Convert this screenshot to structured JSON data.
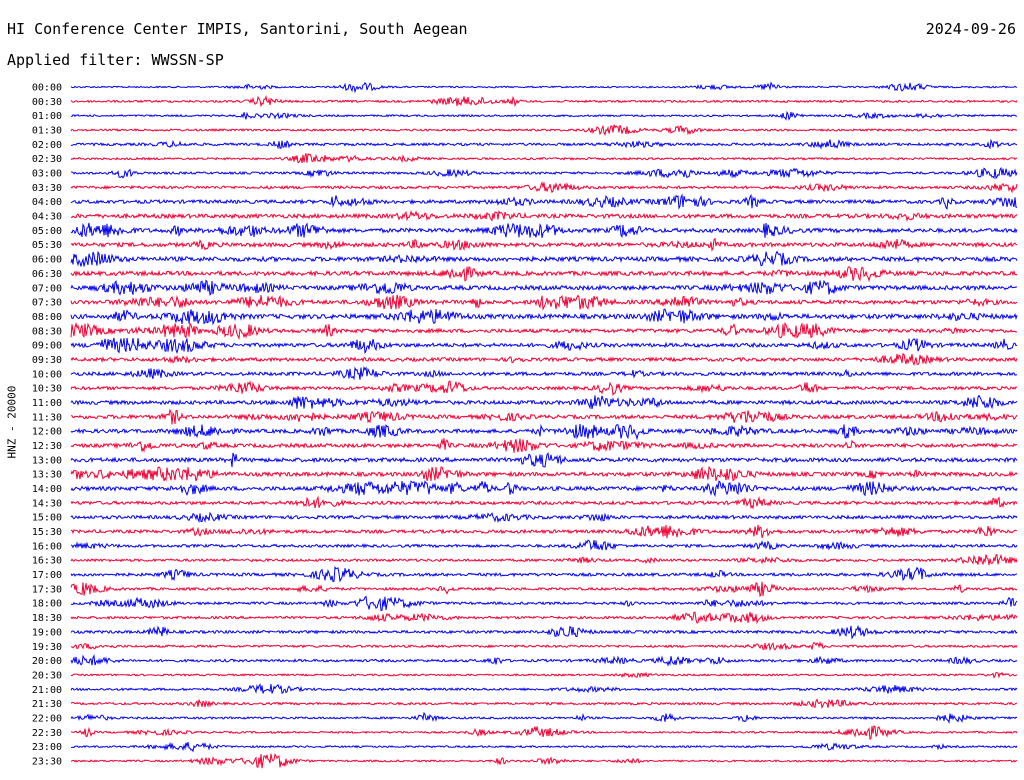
{
  "header": {
    "title": "HI Conference Center IMPIS, Santorini, South Aegean",
    "date": "2024-09-26",
    "filter": "Applied filter: WWSSN-SP"
  },
  "colors": {
    "traceA": "#0000ee",
    "traceB": "#ee0033",
    "background": "#ffffff"
  },
  "chart_data": {
    "type": "line",
    "title": "HI Conference Center IMPIS, Santorini, South Aegean",
    "ylabel": "HNZ - 20000",
    "xlabel": "",
    "legend": "none",
    "grid": false,
    "time_labels": [
      "00:00",
      "00:30",
      "01:00",
      "01:30",
      "02:00",
      "02:30",
      "03:00",
      "03:30",
      "04:00",
      "04:30",
      "05:00",
      "05:30",
      "06:00",
      "06:30",
      "07:00",
      "07:30",
      "08:00",
      "08:30",
      "09:00",
      "09:30",
      "10:00",
      "10:30",
      "11:00",
      "11:30",
      "12:00",
      "12:30",
      "13:00",
      "13:30",
      "14:00",
      "14:30",
      "15:00",
      "15:30",
      "16:00",
      "16:30",
      "17:00",
      "17:30",
      "18:00",
      "18:30",
      "19:00",
      "19:30",
      "20:00",
      "20:30",
      "21:00",
      "21:30",
      "22:00",
      "22:30",
      "23:00",
      "23:30"
    ],
    "trace_colors": [
      "#0000ee",
      "#ee0033"
    ],
    "activity": [
      0.15,
      0.25,
      0.2,
      0.25,
      0.35,
      0.25,
      0.3,
      0.4,
      0.55,
      0.65,
      0.65,
      0.65,
      0.75,
      0.7,
      0.7,
      0.65,
      0.75,
      0.6,
      0.6,
      0.55,
      0.55,
      0.5,
      0.6,
      0.6,
      0.6,
      0.6,
      0.65,
      0.65,
      0.65,
      0.5,
      0.5,
      0.5,
      0.4,
      0.35,
      0.45,
      0.35,
      0.35,
      0.35,
      0.4,
      0.3,
      0.35,
      0.2,
      0.3,
      0.3,
      0.25,
      0.2,
      0.2,
      0.2
    ]
  }
}
